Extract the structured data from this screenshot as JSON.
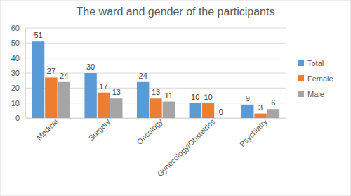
{
  "chart_data": {
    "type": "bar",
    "title": "The ward and gender of the participants",
    "categories": [
      "Medical",
      "Surgery",
      "Oncology",
      "Gynecology/Obstetrics",
      "Psychiatry"
    ],
    "series": [
      {
        "name": "Total",
        "color": "#5b9bd5",
        "values": [
          51,
          30,
          24,
          10,
          9
        ]
      },
      {
        "name": "Female",
        "color": "#ed7d31",
        "values": [
          27,
          17,
          13,
          10,
          3
        ]
      },
      {
        "name": "Male",
        "color": "#a5a5a5",
        "values": [
          24,
          13,
          11,
          0,
          6
        ]
      }
    ],
    "ylim": [
      0,
      60
    ],
    "yticks": [
      0,
      10,
      20,
      30,
      40,
      50,
      60
    ],
    "grid": true,
    "data_labels": true,
    "legend": "right"
  }
}
